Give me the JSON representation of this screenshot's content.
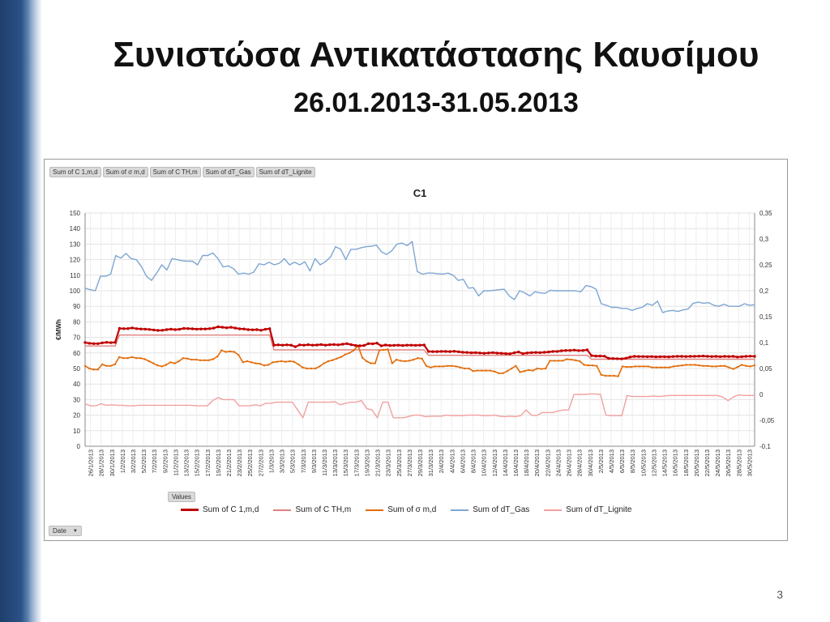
{
  "slide": {
    "title": "Συνιστώσα Αντικατάστασης Καυσίμου",
    "subtitle": "26.01.2013-31.05.2013",
    "page_number": "3"
  },
  "pivot": {
    "field_buttons": [
      "Sum of C 1,m,d",
      "Sum of σ m,d",
      "Sum of C TH,m",
      "Sum of dT_Gas",
      "Sum of dT_Lignite"
    ],
    "values_button": "Values",
    "date_button": "Date"
  },
  "chart_data": {
    "type": "line",
    "title": "C1",
    "ylabel": "€/MWh",
    "ylim": [
      0,
      150
    ],
    "yticks": [
      0,
      10,
      20,
      30,
      40,
      50,
      60,
      70,
      80,
      90,
      100,
      110,
      120,
      130,
      140,
      150
    ],
    "y2lim": [
      -0.1,
      0.35
    ],
    "y2ticks": [
      "-0,1",
      "-0,05",
      "0",
      "0,05",
      "0,1",
      "0,15",
      "0,2",
      "0,25",
      "0,3",
      "0,35"
    ],
    "x_tick_labels": [
      "26/1/2013",
      "28/1/2013",
      "30/1/2013",
      "1/2/2013",
      "3/2/2013",
      "5/2/2013",
      "7/2/2013",
      "9/2/2013",
      "11/2/2013",
      "13/2/2013",
      "15/2/2013",
      "17/2/2013",
      "19/2/2013",
      "21/2/2013",
      "23/2/2013",
      "25/2/2013",
      "27/2/2013",
      "1/3/2013",
      "3/3/2013",
      "5/3/2013",
      "7/3/2013",
      "9/3/2013",
      "11/3/2013",
      "13/3/2013",
      "15/3/2013",
      "17/3/2013",
      "19/3/2013",
      "21/3/2013",
      "23/3/2013",
      "25/3/2013",
      "27/3/2013",
      "29/3/2013",
      "31/3/2013",
      "2/4/2013",
      "4/4/2013",
      "6/4/2013",
      "8/4/2013",
      "10/4/2013",
      "12/4/2013",
      "14/4/2013",
      "16/4/2013",
      "18/4/2013",
      "20/4/2013",
      "22/4/2013",
      "24/4/2013",
      "26/4/2013",
      "28/4/2013",
      "30/4/2013",
      "2/5/2013",
      "4/5/2013",
      "6/5/2013",
      "8/5/2013",
      "10/5/2013",
      "12/5/2013",
      "14/5/2013",
      "16/5/2013",
      "18/5/2013",
      "20/5/2013",
      "22/5/2013",
      "24/5/2013",
      "26/5/2013",
      "28/5/2013",
      "30/5/2013"
    ],
    "legend_placement": "bottom",
    "grid": true,
    "series": [
      {
        "name": "Sum of C 1,m,d",
        "color": "#c00000",
        "axis": "primary",
        "markers": true,
        "values": [
          66.7,
          66.2,
          66.0,
          66.0,
          66.5,
          66.8,
          66.6,
          66.8,
          75.8,
          75.6,
          75.7,
          76.1,
          75.6,
          75.4,
          75.3,
          75.1,
          74.8,
          74.5,
          74.6,
          75.0,
          75.3,
          75.0,
          75.2,
          75.8,
          75.7,
          75.5,
          75.3,
          75.4,
          75.4,
          75.6,
          76.0,
          76.8,
          76.5,
          76.2,
          76.5,
          76.0,
          75.5,
          75.4,
          75.0,
          74.9,
          75.0,
          74.6,
          75.2,
          75.6,
          65.0,
          65.2,
          65.0,
          65.2,
          65.0,
          64.0,
          65.2,
          65.0,
          65.3,
          65.0,
          65.1,
          65.4,
          65.0,
          65.3,
          65.4,
          65.2,
          65.6,
          66.0,
          65.3,
          64.8,
          64.6,
          64.8,
          66.0,
          65.9,
          66.3,
          64.6,
          65.1,
          64.8,
          64.9,
          65.0,
          64.8,
          65.0,
          65.0,
          64.9,
          65.0,
          65.1,
          61.0,
          60.9,
          60.9,
          61.0,
          61.0,
          60.9,
          61.1,
          60.8,
          60.4,
          60.3,
          60.1,
          60.2,
          60.0,
          59.8,
          60.0,
          60.2,
          59.9,
          59.8,
          59.6,
          59.5,
          60.1,
          60.6,
          59.6,
          60.0,
          60.2,
          60.3,
          60.2,
          60.4,
          60.6,
          61.0,
          61.0,
          61.4,
          61.6,
          61.6,
          61.8,
          61.5,
          61.6,
          62.0,
          58.3,
          58.0,
          58.0,
          57.9,
          56.5,
          56.4,
          56.3,
          56.2,
          56.6,
          57.4,
          57.8,
          57.7,
          57.7,
          57.6,
          57.7,
          57.5,
          57.6,
          57.6,
          57.5,
          57.7,
          57.8,
          57.8,
          57.7,
          57.8,
          57.8,
          57.9,
          58.0,
          57.8,
          57.7,
          57.8,
          57.6,
          57.8,
          57.7,
          57.8,
          57.4,
          57.6,
          57.8,
          57.9,
          57.8
        ]
      },
      {
        "name": "Sum of C TH,m",
        "color": "#e08080",
        "axis": "primary",
        "markers": false,
        "values": [
          64.5,
          64.5,
          64.5,
          64.5,
          64.5,
          64.5,
          64.5,
          64.5,
          71.5,
          71.5,
          71.5,
          71.5,
          71.5,
          71.5,
          71.5,
          71.5,
          71.5,
          71.5,
          71.5,
          71.5,
          71.5,
          71.5,
          71.5,
          71.5,
          71.5,
          71.5,
          71.5,
          71.5,
          71.5,
          71.5,
          71.5,
          71.5,
          71.5,
          71.5,
          71.5,
          71.5,
          71.5,
          71.5,
          71.5,
          71.5,
          71.5,
          71.5,
          71.5,
          71.5,
          62.0,
          62.0,
          62.0,
          62.0,
          62.0,
          62.0,
          62.0,
          62.0,
          62.0,
          62.0,
          62.0,
          62.0,
          62.0,
          62.0,
          62.0,
          62.0,
          62.0,
          62.0,
          62.0,
          62.0,
          62.0,
          62.0,
          62.0,
          62.0,
          62.0,
          62.0,
          62.0,
          62.0,
          62.0,
          62.0,
          62.0,
          62.0,
          62.0,
          62.0,
          62.0,
          62.0,
          58.5,
          58.5,
          58.5,
          58.5,
          58.5,
          58.5,
          58.5,
          58.5,
          58.5,
          58.5,
          58.5,
          58.5,
          58.5,
          58.5,
          58.5,
          58.5,
          58.5,
          58.5,
          58.5,
          58.5,
          58.5,
          58.5,
          58.5,
          58.5,
          58.5,
          58.5,
          58.5,
          58.5,
          58.5,
          58.5,
          58.5,
          58.5,
          58.5,
          58.5,
          58.5,
          58.5,
          58.5,
          58.5,
          56.0,
          56.0,
          56.0,
          56.0,
          56.0,
          56.0,
          56.0,
          56.0,
          56.0,
          56.0,
          56.0,
          56.0,
          56.0,
          56.0,
          56.0,
          56.0,
          56.0,
          56.0,
          56.0,
          56.0,
          56.0,
          56.0,
          56.0,
          56.0,
          56.0,
          56.0,
          56.0,
          56.0,
          56.0,
          56.0,
          56.0,
          56.0,
          56.0,
          56.0,
          56.0,
          56.0,
          56.0,
          56.0,
          56.0
        ]
      },
      {
        "name": "Sum of σ m,d",
        "color": "#e36c0a",
        "axis": "secondary",
        "markers": true,
        "values": [
          0.055,
          0.05,
          0.048,
          0.048,
          0.058,
          0.055,
          0.055,
          0.058,
          0.072,
          0.07,
          0.07,
          0.072,
          0.07,
          0.07,
          0.068,
          0.064,
          0.06,
          0.056,
          0.054,
          0.057,
          0.062,
          0.06,
          0.064,
          0.07,
          0.069,
          0.067,
          0.067,
          0.066,
          0.066,
          0.066,
          0.068,
          0.073,
          0.085,
          0.082,
          0.083,
          0.082,
          0.076,
          0.062,
          0.064,
          0.062,
          0.06,
          0.059,
          0.056,
          0.057,
          0.062,
          0.063,
          0.064,
          0.063,
          0.064,
          0.063,
          0.058,
          0.052,
          0.05,
          0.05,
          0.05,
          0.054,
          0.06,
          0.064,
          0.066,
          0.069,
          0.072,
          0.077,
          0.08,
          0.085,
          0.094,
          0.071,
          0.064,
          0.06,
          0.06,
          0.085,
          0.086,
          0.087,
          0.06,
          0.067,
          0.065,
          0.064,
          0.065,
          0.067,
          0.07,
          0.069,
          0.055,
          0.052,
          0.054,
          0.054,
          0.054,
          0.055,
          0.055,
          0.054,
          0.052,
          0.05,
          0.05,
          0.045,
          0.046,
          0.046,
          0.046,
          0.046,
          0.044,
          0.041,
          0.041,
          0.045,
          0.05,
          0.055,
          0.043,
          0.045,
          0.047,
          0.046,
          0.05,
          0.049,
          0.05,
          0.065,
          0.065,
          0.065,
          0.065,
          0.068,
          0.067,
          0.066,
          0.064,
          0.057,
          0.056,
          0.056,
          0.055,
          0.038,
          0.036,
          0.036,
          0.036,
          0.035,
          0.054,
          0.053,
          0.053,
          0.054,
          0.054,
          0.054,
          0.054,
          0.052,
          0.052,
          0.052,
          0.052,
          0.052,
          0.054,
          0.055,
          0.056,
          0.057,
          0.057,
          0.057,
          0.056,
          0.055,
          0.055,
          0.054,
          0.054,
          0.055,
          0.055,
          0.052,
          0.049,
          0.053,
          0.057,
          0.055,
          0.054,
          0.056
        ]
      },
      {
        "name": "Sum of dT_Gas",
        "color": "#7ea6d3",
        "axis": "secondary",
        "markers": false,
        "values": [
          0.205,
          0.202,
          0.2,
          0.228,
          0.228,
          0.232,
          0.268,
          0.263,
          0.272,
          0.262,
          0.26,
          0.247,
          0.228,
          0.22,
          0.234,
          0.25,
          0.24,
          0.262,
          0.26,
          0.258,
          0.257,
          0.257,
          0.25,
          0.268,
          0.268,
          0.273,
          0.262,
          0.246,
          0.248,
          0.243,
          0.232,
          0.234,
          0.232,
          0.236,
          0.252,
          0.25,
          0.255,
          0.25,
          0.253,
          0.262,
          0.25,
          0.255,
          0.25,
          0.256,
          0.238,
          0.262,
          0.25,
          0.256,
          0.265,
          0.285,
          0.28,
          0.26,
          0.28,
          0.28,
          0.283,
          0.285,
          0.286,
          0.288,
          0.275,
          0.27,
          0.277,
          0.29,
          0.292,
          0.287,
          0.295,
          0.237,
          0.232,
          0.234,
          0.234,
          0.233,
          0.232,
          0.234,
          0.23,
          0.22,
          0.222,
          0.205,
          0.206,
          0.19,
          0.2,
          0.2,
          0.201,
          0.202,
          0.203,
          0.19,
          0.183,
          0.2,
          0.196,
          0.19,
          0.198,
          0.196,
          0.195,
          0.201,
          0.2,
          0.2,
          0.2,
          0.2,
          0.2,
          0.198,
          0.21,
          0.208,
          0.203,
          0.175,
          0.172,
          0.168,
          0.168,
          0.166,
          0.166,
          0.162,
          0.166,
          0.168,
          0.175,
          0.172,
          0.18,
          0.158,
          0.161,
          0.162,
          0.16,
          0.163,
          0.165,
          0.176,
          0.178,
          0.176,
          0.177,
          0.172,
          0.17,
          0.174,
          0.17,
          0.17,
          0.17,
          0.175,
          0.172,
          0.173
        ]
      },
      {
        "name": "Sum of dT_Lignite",
        "color": "#f2a0a0",
        "axis": "secondary",
        "markers": false,
        "values": [
          -0.018,
          -0.022,
          -0.022,
          -0.018,
          -0.021,
          -0.02,
          -0.021,
          -0.021,
          -0.022,
          -0.022,
          -0.021,
          -0.021,
          -0.021,
          -0.021,
          -0.021,
          -0.021,
          -0.021,
          -0.021,
          -0.021,
          -0.021,
          -0.021,
          -0.022,
          -0.022,
          -0.022,
          -0.012,
          -0.006,
          -0.01,
          -0.01,
          -0.01,
          -0.022,
          -0.022,
          -0.022,
          -0.02,
          -0.022,
          -0.017,
          -0.017,
          -0.015,
          -0.015,
          -0.015,
          -0.015,
          -0.03,
          -0.045,
          -0.015,
          -0.015,
          -0.015,
          -0.015,
          -0.015,
          -0.014,
          -0.02,
          -0.017,
          -0.015,
          -0.015,
          -0.012,
          -0.027,
          -0.03,
          -0.045,
          -0.015,
          -0.015,
          -0.045,
          -0.045,
          -0.045,
          -0.042,
          -0.04,
          -0.04,
          -0.043,
          -0.042,
          -0.042,
          -0.042,
          -0.04,
          -0.041,
          -0.041,
          -0.041,
          -0.04,
          -0.04,
          -0.04,
          -0.041,
          -0.041,
          -0.04,
          -0.042,
          -0.043,
          -0.042,
          -0.043,
          -0.041,
          -0.03,
          -0.04,
          -0.041,
          -0.035,
          -0.035,
          -0.035,
          -0.032,
          -0.03,
          -0.03,
          0.0,
          0.0,
          0.0,
          0.001,
          0.001,
          0.0,
          -0.04,
          -0.041,
          -0.041,
          -0.041,
          -0.002,
          -0.004,
          -0.004,
          -0.004,
          -0.004,
          -0.003,
          -0.004,
          -0.003,
          -0.002,
          -0.002,
          -0.002,
          -0.002,
          -0.002,
          -0.002,
          -0.002,
          -0.002,
          -0.002,
          -0.002,
          -0.005,
          -0.012,
          -0.005,
          -0.001,
          -0.002,
          -0.002,
          -0.002
        ]
      }
    ]
  }
}
